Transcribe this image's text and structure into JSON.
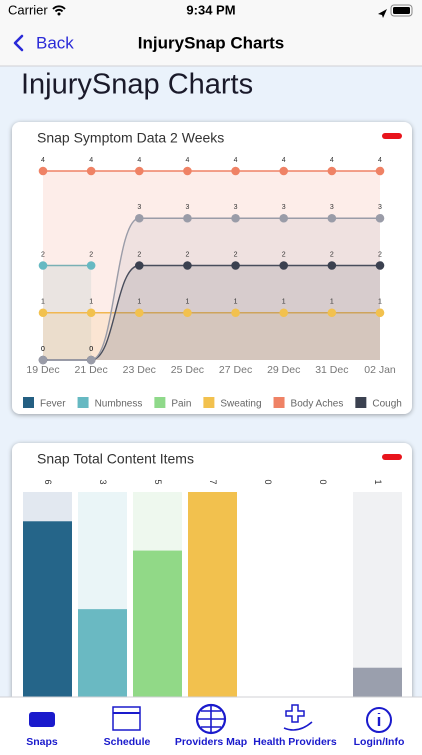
{
  "status_bar": {
    "carrier": "Carrier",
    "time": "9:34 PM"
  },
  "nav": {
    "back": "Back",
    "title": "InjurySnap Charts"
  },
  "header": {
    "title": "InjurySnap Charts"
  },
  "chart_data": [
    {
      "type": "line",
      "title": "Snap Symptom Data 2 Weeks",
      "categories": [
        "19 Dec",
        "21 Dec",
        "23 Dec",
        "25 Dec",
        "27 Dec",
        "29 Dec",
        "31 Dec",
        "02 Jan"
      ],
      "ylim": [
        0,
        4
      ],
      "area": true,
      "series": [
        {
          "name": "Fever",
          "color": "#245f82",
          "values": [
            null,
            null,
            null,
            null,
            null,
            null,
            null,
            null
          ]
        },
        {
          "name": "Numbness",
          "color": "#66b9c2",
          "values": [
            2,
            2,
            null,
            null,
            null,
            null,
            null,
            null
          ]
        },
        {
          "name": "Pain",
          "color": "#8fd98a",
          "values": [
            null,
            null,
            null,
            null,
            null,
            null,
            null,
            null
          ]
        },
        {
          "name": "Sweating",
          "color": "#f2c14e",
          "values": [
            1,
            1,
            1,
            1,
            1,
            1,
            1,
            1
          ]
        },
        {
          "name": "Body Aches",
          "color": "#ef8265",
          "values": [
            4,
            4,
            4,
            4,
            4,
            4,
            4,
            4
          ]
        },
        {
          "name": "Cough",
          "color": "#3b4150",
          "values": [
            0,
            0,
            2,
            2,
            2,
            2,
            2,
            2
          ]
        },
        {
          "name": null,
          "color": "#9a9ca8",
          "values": [
            0,
            0,
            3,
            3,
            3,
            3,
            3,
            3
          ]
        }
      ]
    },
    {
      "type": "bar",
      "title": "Snap Total Content Items",
      "categories": [
        null,
        null,
        null,
        null,
        null,
        null,
        null
      ],
      "values": [
        6,
        3,
        5,
        7,
        0,
        0,
        1
      ],
      "colors": [
        "#256589",
        "#6ab9c2",
        "#91d987",
        "#f2c14e",
        "#ef8265",
        "#3b4150",
        "#9a9fad"
      ],
      "track_colors": [
        "#e2e8f0",
        "#eaf5f7",
        "#eef8ee",
        "#fdf3dc",
        "#ffffff",
        "#ffffff",
        "#f0f1f3"
      ],
      "ylim": [
        0,
        7
      ]
    }
  ],
  "tab_bar": {
    "items": [
      "Snaps",
      "Schedule",
      "Providers Map",
      "Health Providers",
      "Login/Info"
    ]
  }
}
